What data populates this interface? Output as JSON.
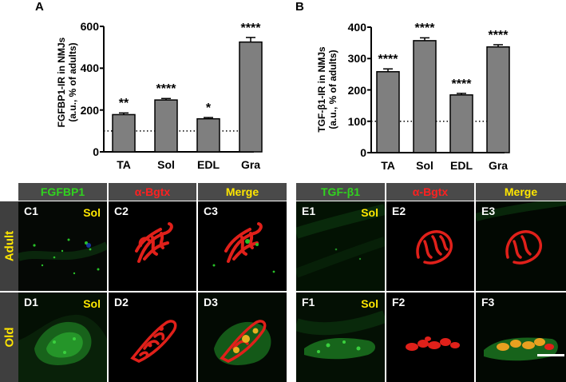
{
  "chart_data": [
    {
      "type": "bar",
      "panel": "A",
      "ylabel": [
        "FGFBP1-IR in NMJs",
        "(a.u., % of adults)"
      ],
      "categories": [
        "TA",
        "Sol",
        "EDL",
        "Gra"
      ],
      "values": [
        178,
        248,
        158,
        525
      ],
      "errors": [
        8,
        7,
        6,
        22
      ],
      "significance": [
        "**",
        "****",
        "*",
        "****"
      ],
      "ylim": [
        0,
        600
      ],
      "yticks": [
        0,
        200,
        400,
        600
      ],
      "reference_line": 100,
      "bar_color": "#7f7f7f"
    },
    {
      "type": "bar",
      "panel": "B",
      "ylabel": [
        "TGF-β1-IR in NMJs",
        "(a.u., % of adults)"
      ],
      "categories": [
        "TA",
        "Sol",
        "EDL",
        "Gra"
      ],
      "values": [
        258,
        357,
        184,
        337
      ],
      "errors": [
        9,
        9,
        5,
        7
      ],
      "significance": [
        "****",
        "****",
        "****",
        "****"
      ],
      "ylim": [
        0,
        400
      ],
      "yticks": [
        0,
        100,
        200,
        300,
        400
      ],
      "reference_line": 100,
      "bar_color": "#7f7f7f"
    }
  ],
  "images": {
    "left": {
      "headers": [
        "FGFBP1",
        "α-Bgtx",
        "Merge"
      ],
      "rows": [
        {
          "label": "Adult",
          "panels": [
            "C1",
            "C2",
            "C3"
          ],
          "muscle": "Sol"
        },
        {
          "label": "Old",
          "panels": [
            "D1",
            "D2",
            "D3"
          ],
          "muscle": "Sol"
        }
      ]
    },
    "right": {
      "headers": [
        "TGF-β1",
        "α-Bgtx",
        "Merge"
      ],
      "rows": [
        {
          "panels": [
            "E1",
            "E2",
            "E3"
          ],
          "muscle": "Sol"
        },
        {
          "panels": [
            "F1",
            "F2",
            "F3"
          ],
          "muscle": "Sol"
        }
      ]
    }
  },
  "colors": {
    "header_bg": "#4a4a4a",
    "green_label": "#31d31f",
    "red_label": "#ff2020",
    "yellow_label": "#ffe600"
  }
}
